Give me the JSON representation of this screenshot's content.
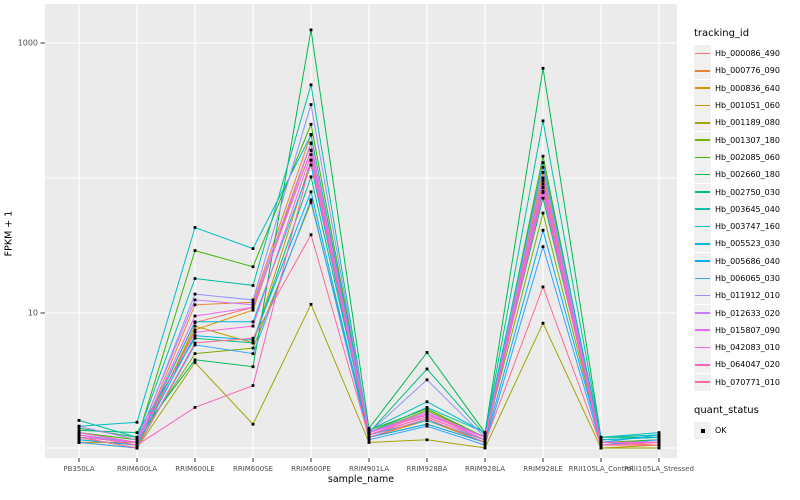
{
  "chart": {
    "background": "#ffffff",
    "panel_background": "#ebebeb",
    "grid_color": "#ffffff",
    "tick_label_color": "#4d4d4d",
    "point_color": "#000000"
  },
  "chart_data": {
    "type": "line",
    "title": "",
    "xlabel": "sample_name",
    "ylabel": "FPKM + 1",
    "y_scale": "log10",
    "ylim": [
      1,
      1400
    ],
    "y_major_gridlines": [
      1,
      10,
      100,
      1000
    ],
    "y_labeled_ticks": [
      "10",
      "1000"
    ],
    "grid": "on",
    "legend_position": "right",
    "categories": [
      "PB350LA",
      "RRIM600LA",
      "RRIM600LE",
      "RRIM600SE",
      "RRIM600PE",
      "RRIM901LA",
      "RRIM928BA",
      "RRIM928LA",
      "RRIM928LE",
      "RRII105LA_Control",
      "RRII105LA_Stressed"
    ],
    "series": [
      {
        "name": "Hb_000086_490",
        "color": "#F8766D",
        "values": [
          1.2,
          1.1,
          8.5,
          11.0,
          160,
          1.3,
          1.8,
          1.2,
          100,
          1.1,
          1.1
        ]
      },
      {
        "name": "Hb_000776_090",
        "color": "#EA8331",
        "values": [
          1.15,
          1.05,
          11.5,
          12.0,
          210,
          1.25,
          1.7,
          1.15,
          110,
          1.1,
          1.05
        ]
      },
      {
        "name": "Hb_000836_640",
        "color": "#D89000",
        "values": [
          1.1,
          1.1,
          7.5,
          10.5,
          180,
          1.2,
          1.6,
          1.1,
          95,
          1.05,
          1.1
        ]
      },
      {
        "name": "Hb_001051_060",
        "color": "#C09B00",
        "values": [
          1.2,
          1.0,
          8.0,
          6.0,
          135,
          1.2,
          1.5,
          1.1,
          85,
          1.0,
          1.05
        ]
      },
      {
        "name": "Hb_001189_080",
        "color": "#A3A500",
        "values": [
          1.1,
          1.0,
          4.3,
          1.5,
          11.6,
          1.1,
          1.15,
          1.0,
          8.4,
          1.0,
          1.0
        ]
      },
      {
        "name": "Hb_001307_180",
        "color": "#7CAE00",
        "values": [
          1.3,
          1.1,
          5.0,
          5.5,
          66,
          1.3,
          1.9,
          1.2,
          55,
          1.1,
          1.1
        ]
      },
      {
        "name": "Hb_002085_060",
        "color": "#39B600",
        "values": [
          1.3,
          1.15,
          29,
          22,
          250,
          1.35,
          1.95,
          1.2,
          145,
          1.1,
          1.15
        ]
      },
      {
        "name": "Hb_002660_180",
        "color": "#00BB4E",
        "values": [
          1.4,
          1.2,
          4.5,
          4.0,
          1250,
          1.4,
          5.1,
          1.3,
          650,
          1.2,
          1.2
        ]
      },
      {
        "name": "Hb_002750_030",
        "color": "#00BF7D",
        "values": [
          1.35,
          1.3,
          6.5,
          6.0,
          102,
          1.3,
          3.85,
          1.25,
          71,
          1.15,
          1.2
        ]
      },
      {
        "name": "Hb_003645_040",
        "color": "#00C1A3",
        "values": [
          1.6,
          1.2,
          18,
          16,
          490,
          1.3,
          2.0,
          1.3,
          265,
          1.2,
          1.25
        ]
      },
      {
        "name": "Hb_003747_160",
        "color": "#00BFC4",
        "values": [
          1.45,
          1.55,
          43,
          30,
          208,
          1.35,
          2.2,
          1.3,
          130,
          1.2,
          1.3
        ]
      },
      {
        "name": "Hb_005523_030",
        "color": "#00BAE0",
        "values": [
          1.2,
          1.1,
          8.6,
          8.6,
          125,
          1.25,
          1.6,
          1.15,
          80,
          1.15,
          1.2
        ]
      },
      {
        "name": "Hb_005686_040",
        "color": "#00B0F6",
        "values": [
          1.15,
          1.05,
          6.8,
          6.3,
          79,
          1.2,
          1.5,
          1.1,
          41,
          1.1,
          1.25
        ]
      },
      {
        "name": "Hb_006065_030",
        "color": "#35A2FF",
        "values": [
          1.1,
          1.0,
          5.8,
          5.0,
          69,
          1.15,
          1.45,
          1.05,
          31,
          1.05,
          1.15
        ]
      },
      {
        "name": "Hb_011912_010",
        "color": "#9590FF",
        "values": [
          1.25,
          1.1,
          13.8,
          12.5,
          350,
          1.3,
          3.2,
          1.2,
          120,
          1.1,
          1.1
        ]
      },
      {
        "name": "Hb_012633_020",
        "color": "#C77CFF",
        "values": [
          1.45,
          1.15,
          12.5,
          11.5,
          182,
          1.3,
          1.85,
          1.2,
          90,
          1.1,
          1.1
        ]
      },
      {
        "name": "Hb_015807_090",
        "color": "#E76BF3",
        "values": [
          1.2,
          1.1,
          9.5,
          11.0,
          161,
          1.25,
          1.8,
          1.15,
          100,
          1.1,
          1.1
        ]
      },
      {
        "name": "Hb_042083_010",
        "color": "#FA62DB",
        "values": [
          1.3,
          1.1,
          7.2,
          8.0,
          149,
          1.3,
          1.75,
          1.2,
          85,
          1.1,
          1.1
        ]
      },
      {
        "name": "Hb_064047_020",
        "color": "#FF62BC",
        "values": [
          1.25,
          1.05,
          2.0,
          2.9,
          136,
          1.25,
          1.7,
          1.15,
          78,
          1.05,
          1.1
        ]
      },
      {
        "name": "Hb_070771_010",
        "color": "#FF6A98",
        "values": [
          1.2,
          1.0,
          6.0,
          6.5,
          38,
          1.2,
          1.65,
          1.1,
          15.6,
          1.05,
          1.05
        ]
      }
    ],
    "legend": {
      "tracking_title": "tracking_id",
      "quant_title": "quant_status",
      "quant_items": [
        {
          "label": "OK"
        }
      ]
    }
  }
}
